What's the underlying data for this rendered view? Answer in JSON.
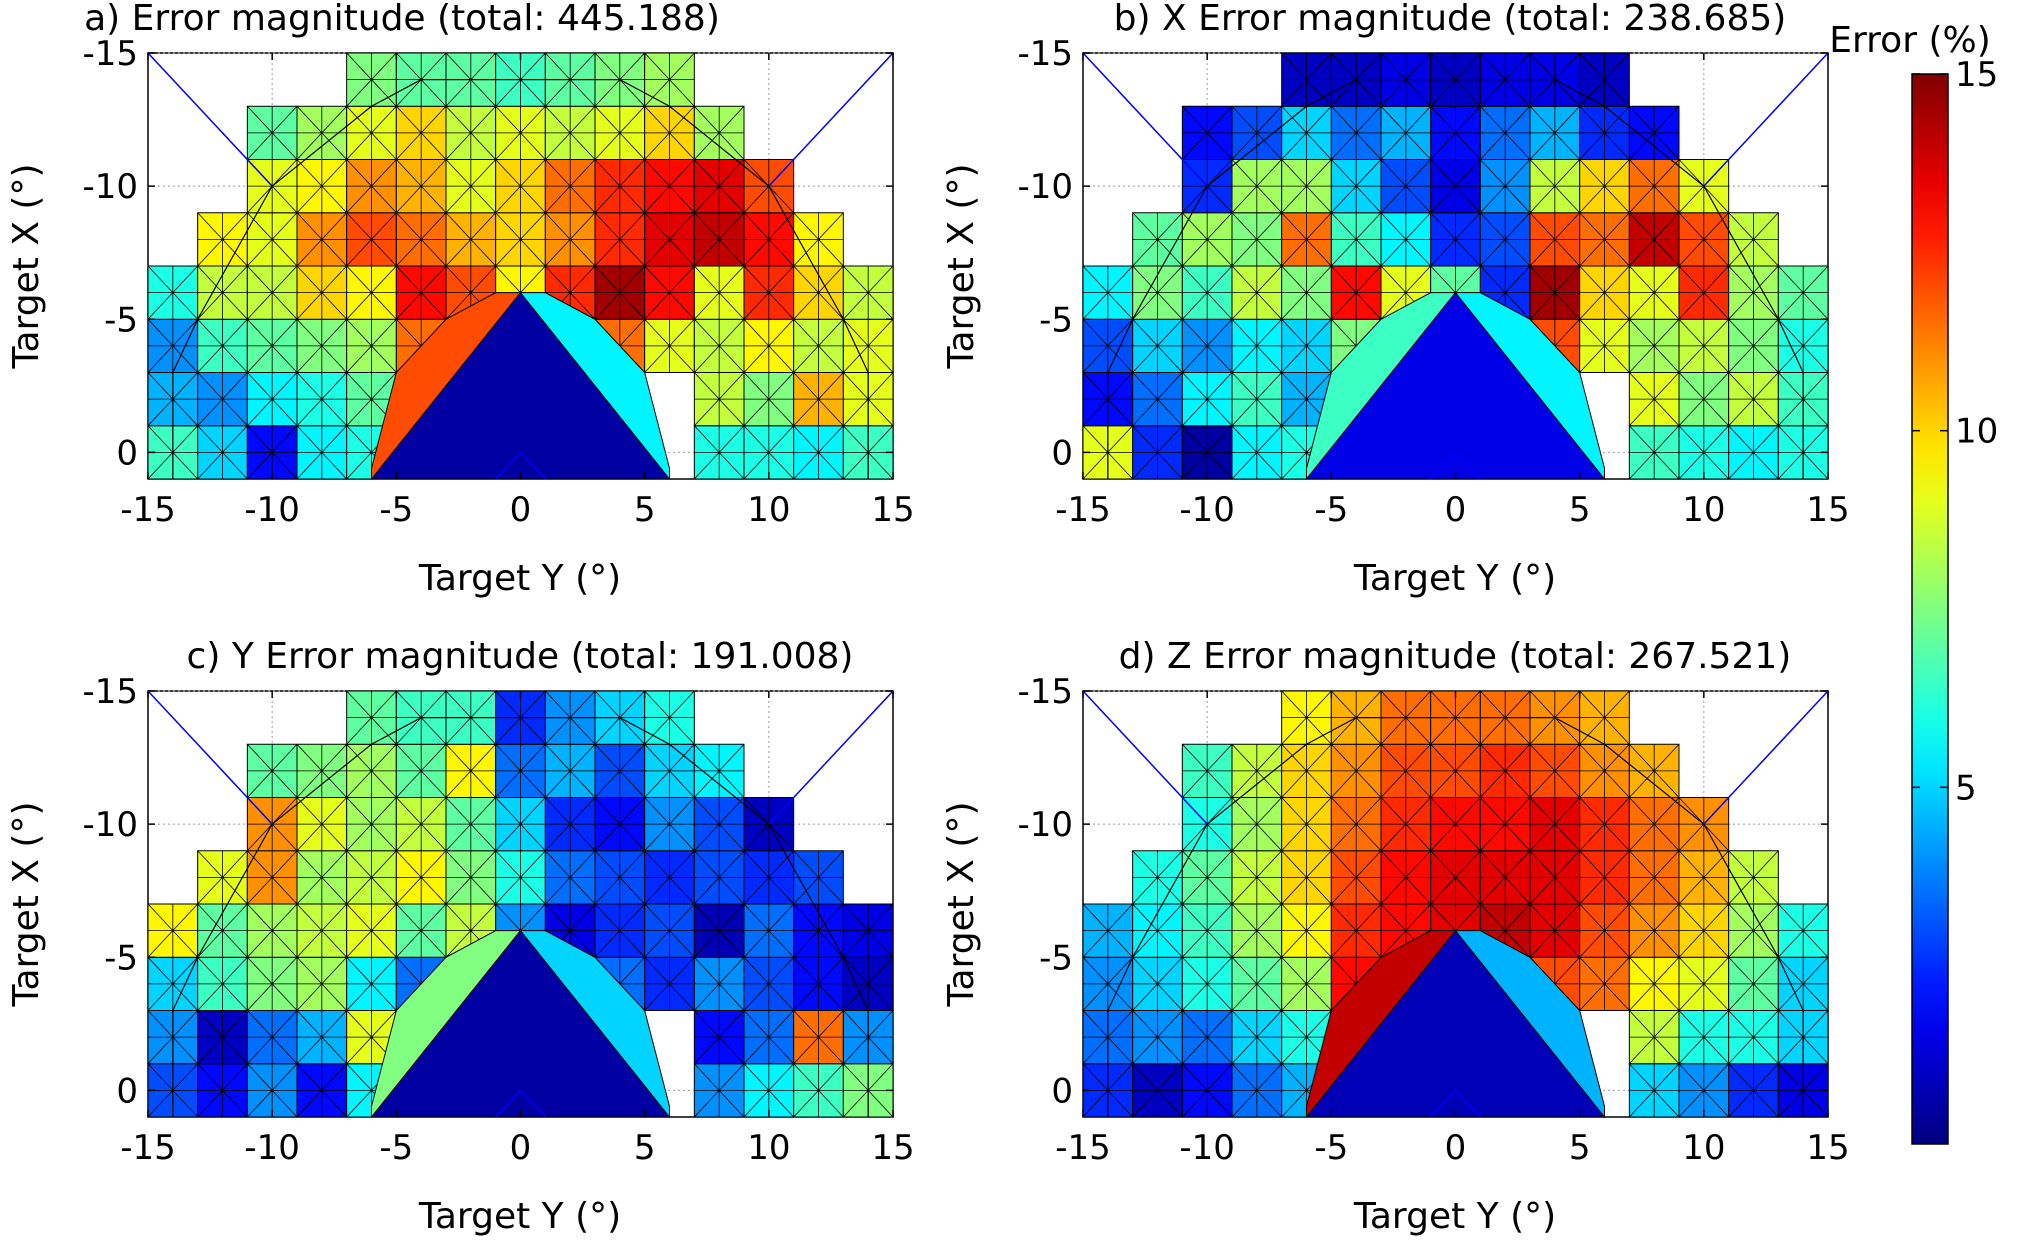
{
  "colorbar": {
    "label": "Error (%)",
    "range": [
      0,
      15
    ],
    "ticks": [
      5,
      10,
      15
    ],
    "colormap": "jet"
  },
  "chart_data": [
    {
      "type": "heatmap",
      "title": "a) Error magnitude (total: 445.188)",
      "xlabel": "Target Y (°)",
      "ylabel": "Target X (°)",
      "xlim": [
        -15,
        15
      ],
      "ylim": [
        -15,
        1
      ],
      "y_reversed": true,
      "xticks": [
        -15,
        -10,
        -5,
        0,
        5,
        10,
        15
      ],
      "yticks": [
        -15,
        -10,
        -5,
        0
      ],
      "grid": true,
      "cell_size": 2,
      "x_columns": [
        -14,
        -12,
        -10,
        -8,
        -6,
        -4,
        -2,
        0,
        2,
        4,
        6,
        8,
        10,
        12,
        14
      ],
      "y_rows": [
        0,
        -2,
        -4,
        -6,
        -8,
        -10,
        -12,
        -14
      ],
      "values": [
        [
          6.5,
          5.0,
          2.0,
          5.5,
          6.0,
          null,
          null,
          null,
          null,
          null,
          null,
          6.0,
          6.0,
          5.5,
          6.5
        ],
        [
          4.5,
          4.0,
          5.5,
          6.0,
          7.0,
          null,
          null,
          null,
          null,
          null,
          null,
          8.5,
          7.5,
          10.5,
          9.0
        ],
        [
          4.0,
          6.5,
          7.0,
          7.5,
          8.0,
          11.5,
          13.5,
          null,
          10.5,
          11.5,
          9.0,
          8.5,
          9.5,
          8.5,
          9.0
        ],
        [
          6.0,
          8.5,
          8.5,
          10.0,
          9.5,
          13.0,
          12.0,
          9.5,
          12.5,
          14.5,
          13.0,
          9.0,
          12.5,
          10.0,
          8.5
        ],
        [
          null,
          9.5,
          9.0,
          11.0,
          12.0,
          11.5,
          10.5,
          10.0,
          11.0,
          12.5,
          13.5,
          14.0,
          13.0,
          9.5,
          null
        ],
        [
          null,
          null,
          9.0,
          9.5,
          11.0,
          10.5,
          9.0,
          10.0,
          11.5,
          12.5,
          13.0,
          13.5,
          12.0,
          null,
          null
        ],
        [
          null,
          null,
          7.0,
          8.0,
          9.0,
          10.0,
          8.5,
          9.0,
          8.5,
          9.0,
          10.0,
          8.0,
          null,
          null,
          null
        ],
        [
          null,
          null,
          null,
          null,
          7.5,
          7.0,
          7.0,
          6.5,
          7.0,
          7.5,
          8.0,
          null,
          null,
          null,
          null
        ]
      ],
      "centre_polygons": [
        {
          "shape": "left-flank",
          "value": 12.0
        },
        {
          "shape": "central-triangle",
          "value": 0.5
        },
        {
          "shape": "right-flank",
          "value": 5.5
        }
      ]
    },
    {
      "type": "heatmap",
      "title": "b) X Error magnitude (total: 238.685)",
      "xlabel": "Target Y (°)",
      "ylabel": "Target X (°)",
      "xlim": [
        -15,
        15
      ],
      "ylim": [
        -15,
        1
      ],
      "y_reversed": true,
      "xticks": [
        -15,
        -10,
        -5,
        0,
        5,
        10,
        15
      ],
      "yticks": [
        -15,
        -10,
        -5,
        0
      ],
      "grid": true,
      "cell_size": 2,
      "x_columns": [
        -14,
        -12,
        -10,
        -8,
        -6,
        -4,
        -2,
        0,
        2,
        4,
        6,
        8,
        10,
        12,
        14
      ],
      "y_rows": [
        0,
        -2,
        -4,
        -6,
        -8,
        -10,
        -12,
        -14
      ],
      "values": [
        [
          9.0,
          2.5,
          0.5,
          5.5,
          6.0,
          null,
          null,
          null,
          null,
          null,
          null,
          6.5,
          6.0,
          5.5,
          6.0
        ],
        [
          2.0,
          3.5,
          5.5,
          6.5,
          4.5,
          null,
          null,
          null,
          null,
          null,
          null,
          9.0,
          7.5,
          8.5,
          6.5
        ],
        [
          3.0,
          5.0,
          4.0,
          5.5,
          5.0,
          7.5,
          6.0,
          null,
          3.0,
          12.0,
          9.0,
          8.0,
          8.5,
          7.5,
          6.0
        ],
        [
          5.5,
          7.5,
          6.5,
          8.5,
          7.5,
          13.0,
          9.0,
          7.0,
          2.5,
          14.5,
          10.0,
          9.0,
          12.5,
          8.0,
          7.0
        ],
        [
          null,
          7.0,
          8.0,
          7.5,
          11.5,
          6.5,
          5.5,
          2.5,
          3.0,
          12.0,
          11.5,
          14.0,
          12.0,
          8.5,
          null
        ],
        [
          null,
          null,
          2.5,
          8.0,
          8.0,
          5.0,
          3.0,
          1.5,
          4.0,
          8.5,
          10.0,
          11.5,
          9.0,
          null,
          null
        ],
        [
          null,
          null,
          2.0,
          3.0,
          5.0,
          3.5,
          4.5,
          2.0,
          3.5,
          4.5,
          2.5,
          2.0,
          null,
          null,
          null
        ],
        [
          null,
          null,
          null,
          null,
          1.0,
          1.0,
          1.5,
          1.0,
          1.5,
          1.5,
          1.0,
          null,
          null,
          null,
          null
        ]
      ],
      "centre_polygons": [
        {
          "shape": "left-flank",
          "value": 6.5
        },
        {
          "shape": "central-triangle",
          "value": 1.5
        },
        {
          "shape": "right-flank",
          "value": 5.5
        }
      ]
    },
    {
      "type": "heatmap",
      "title": "c) Y Error magnitude (total: 191.008)",
      "xlabel": "Target Y (°)",
      "ylabel": "Target X (°)",
      "xlim": [
        -15,
        15
      ],
      "ylim": [
        -15,
        1
      ],
      "y_reversed": true,
      "xticks": [
        -15,
        -10,
        -5,
        0,
        5,
        10,
        15
      ],
      "yticks": [
        -15,
        -10,
        -5,
        0
      ],
      "grid": true,
      "cell_size": 2,
      "x_columns": [
        -14,
        -12,
        -10,
        -8,
        -6,
        -4,
        -2,
        0,
        2,
        4,
        6,
        8,
        10,
        12,
        14
      ],
      "y_rows": [
        0,
        -2,
        -4,
        -6,
        -8,
        -10,
        -12,
        -14
      ],
      "values": [
        [
          3.0,
          2.0,
          4.0,
          2.0,
          5.5,
          null,
          null,
          null,
          null,
          null,
          null,
          4.0,
          5.5,
          6.5,
          7.5
        ],
        [
          4.0,
          1.0,
          3.5,
          4.5,
          9.0,
          null,
          null,
          null,
          null,
          null,
          null,
          2.0,
          3.5,
          11.5,
          4.0
        ],
        [
          5.0,
          6.5,
          7.5,
          8.0,
          5.5,
          3.5,
          5.0,
          null,
          5.0,
          3.5,
          2.5,
          4.0,
          3.0,
          2.0,
          1.0
        ],
        [
          9.5,
          7.0,
          8.0,
          8.5,
          9.0,
          7.0,
          8.5,
          4.0,
          1.5,
          2.5,
          3.0,
          0.8,
          3.5,
          2.0,
          1.5
        ],
        [
          null,
          9.0,
          11.0,
          8.0,
          8.5,
          9.5,
          7.5,
          6.0,
          3.5,
          3.0,
          2.5,
          3.0,
          2.5,
          3.0,
          null
        ],
        [
          null,
          null,
          11.0,
          9.0,
          8.0,
          8.5,
          7.0,
          5.0,
          2.5,
          2.0,
          4.0,
          3.0,
          1.0,
          null,
          null
        ],
        [
          null,
          null,
          7.0,
          7.5,
          8.0,
          7.0,
          9.5,
          3.5,
          4.5,
          3.0,
          5.0,
          5.5,
          null,
          null,
          null
        ],
        [
          null,
          null,
          null,
          null,
          7.0,
          6.5,
          6.5,
          2.5,
          4.0,
          5.0,
          6.0,
          null,
          null,
          null,
          null
        ]
      ],
      "centre_polygons": [
        {
          "shape": "left-flank",
          "value": 7.5
        },
        {
          "shape": "central-triangle",
          "value": 0.5
        },
        {
          "shape": "right-flank",
          "value": 5.0
        }
      ]
    },
    {
      "type": "heatmap",
      "title": "d) Z Error magnitude (total: 267.521)",
      "xlabel": "Target Y (°)",
      "ylabel": "Target X (°)",
      "xlim": [
        -15,
        15
      ],
      "ylim": [
        -15,
        1
      ],
      "y_reversed": true,
      "xticks": [
        -15,
        -10,
        -5,
        0,
        5,
        10,
        15
      ],
      "yticks": [
        -15,
        -10,
        -5,
        0
      ],
      "grid": true,
      "cell_size": 2,
      "x_columns": [
        -14,
        -12,
        -10,
        -8,
        -6,
        -4,
        -2,
        0,
        2,
        4,
        6,
        8,
        10,
        12,
        14
      ],
      "y_rows": [
        0,
        -2,
        -4,
        -6,
        -8,
        -10,
        -12,
        -14
      ],
      "values": [
        [
          2.5,
          1.0,
          2.0,
          3.5,
          4.5,
          null,
          null,
          null,
          null,
          null,
          null,
          5.0,
          4.0,
          2.5,
          1.5
        ],
        [
          3.5,
          4.0,
          3.5,
          5.0,
          6.0,
          null,
          null,
          null,
          null,
          null,
          null,
          8.5,
          6.0,
          6.0,
          5.0
        ],
        [
          4.0,
          5.0,
          6.0,
          7.0,
          8.0,
          13.0,
          13.5,
          null,
          13.5,
          12.0,
          11.5,
          9.5,
          9.0,
          7.0,
          5.0
        ],
        [
          4.5,
          5.5,
          6.5,
          8.0,
          9.5,
          12.5,
          13.0,
          13.5,
          14.0,
          13.5,
          12.0,
          11.0,
          10.0,
          8.0,
          6.0
        ],
        [
          null,
          6.0,
          7.0,
          8.5,
          10.0,
          12.0,
          13.0,
          13.5,
          13.5,
          13.5,
          12.5,
          11.5,
          10.5,
          8.5,
          null
        ],
        [
          null,
          null,
          6.0,
          8.0,
          10.0,
          11.5,
          12.5,
          13.0,
          13.0,
          13.5,
          12.5,
          11.5,
          11.0,
          null,
          null
        ],
        [
          null,
          null,
          6.5,
          8.5,
          10.0,
          11.0,
          12.0,
          12.0,
          12.5,
          12.0,
          11.0,
          10.5,
          null,
          null,
          null
        ],
        [
          null,
          null,
          null,
          null,
          9.5,
          10.5,
          11.5,
          11.5,
          11.5,
          11.0,
          10.5,
          null,
          null,
          null,
          null
        ]
      ],
      "centre_polygons": [
        {
          "shape": "left-flank",
          "value": 14.0
        },
        {
          "shape": "central-triangle",
          "value": 0.8
        },
        {
          "shape": "right-flank",
          "value": 4.5
        }
      ]
    }
  ]
}
